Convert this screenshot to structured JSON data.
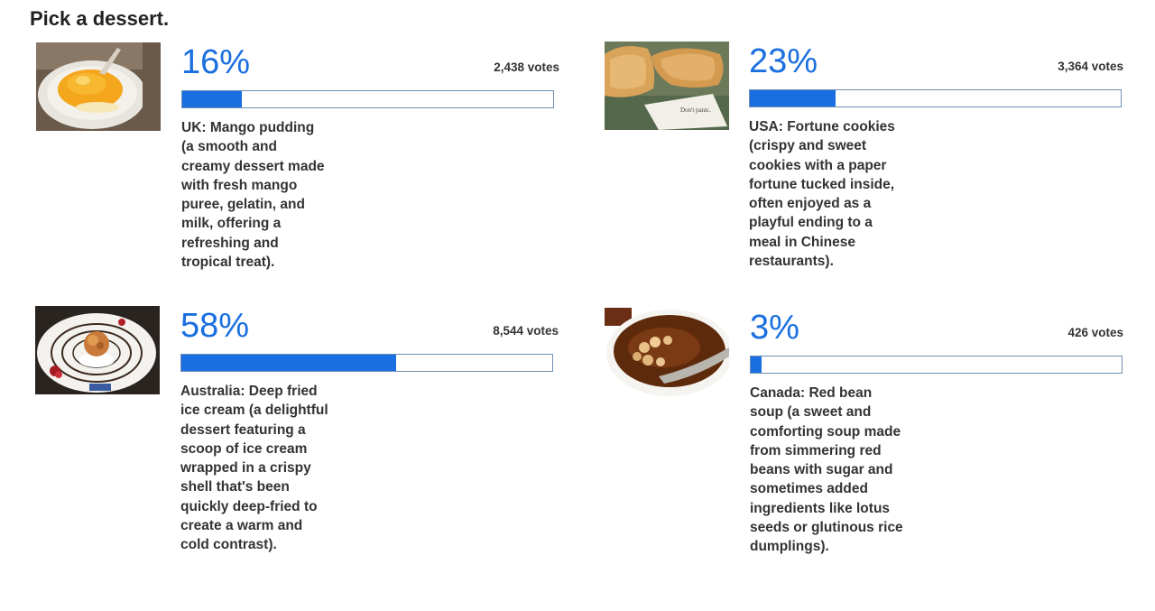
{
  "poll": {
    "title": "Pick a dessert.",
    "accent_color": "#1a6fe0",
    "options": [
      {
        "percent_label": "16%",
        "percent": 16,
        "votes_label": "2,438 votes",
        "description": "UK: Mango pudding (a smooth and creamy dessert made with fresh mango puree, gelatin, and milk, offering a refreshing and tropical treat).",
        "image_icon": "mango-pudding-photo"
      },
      {
        "percent_label": "23%",
        "percent": 23,
        "votes_label": "3,364 votes",
        "description": "USA: Fortune cookies (crispy and sweet cookies with a paper fortune tucked inside, often enjoyed as a playful ending to a meal in Chinese restaurants).",
        "image_icon": "fortune-cookie-photo",
        "image_text": "Don't panic."
      },
      {
        "percent_label": "58%",
        "percent": 58,
        "votes_label": "8,544 votes",
        "description": "Australia: Deep fried ice cream (a delightful dessert featuring a scoop of ice cream wrapped in a crispy shell that's been quickly deep-fried to create a warm and cold contrast).",
        "image_icon": "fried-ice-cream-photo"
      },
      {
        "percent_label": "3%",
        "percent": 3,
        "votes_label": "426 votes",
        "description": "Canada: Red bean soup (a sweet and comforting soup made from simmering red beans with sugar and sometimes added ingredients like lotus seeds or glutinous rice dumplings).",
        "image_icon": "red-bean-soup-photo"
      }
    ]
  }
}
